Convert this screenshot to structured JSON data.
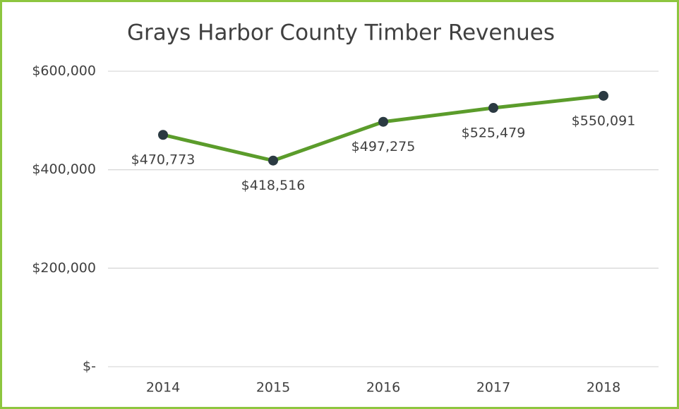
{
  "chart_data": {
    "type": "line",
    "title": "Grays Harbor County Timber Revenues",
    "categories": [
      "2014",
      "2015",
      "2016",
      "2017",
      "2018"
    ],
    "values": [
      470773,
      418516,
      497275,
      525479,
      550091
    ],
    "value_labels": [
      "$470,773",
      "$418,516",
      "$497,275",
      "$525,479",
      "$550,091"
    ],
    "color": "#5b9c2b",
    "marker_color": "#2b3a42",
    "ylim": [
      0,
      600000
    ],
    "yticks": [
      {
        "value": 0,
        "label": "$-"
      },
      {
        "value": 200000,
        "label": "$200,000"
      },
      {
        "value": 400000,
        "label": "$400,000"
      },
      {
        "value": 600000,
        "label": "$600,000"
      }
    ],
    "grid": true
  }
}
